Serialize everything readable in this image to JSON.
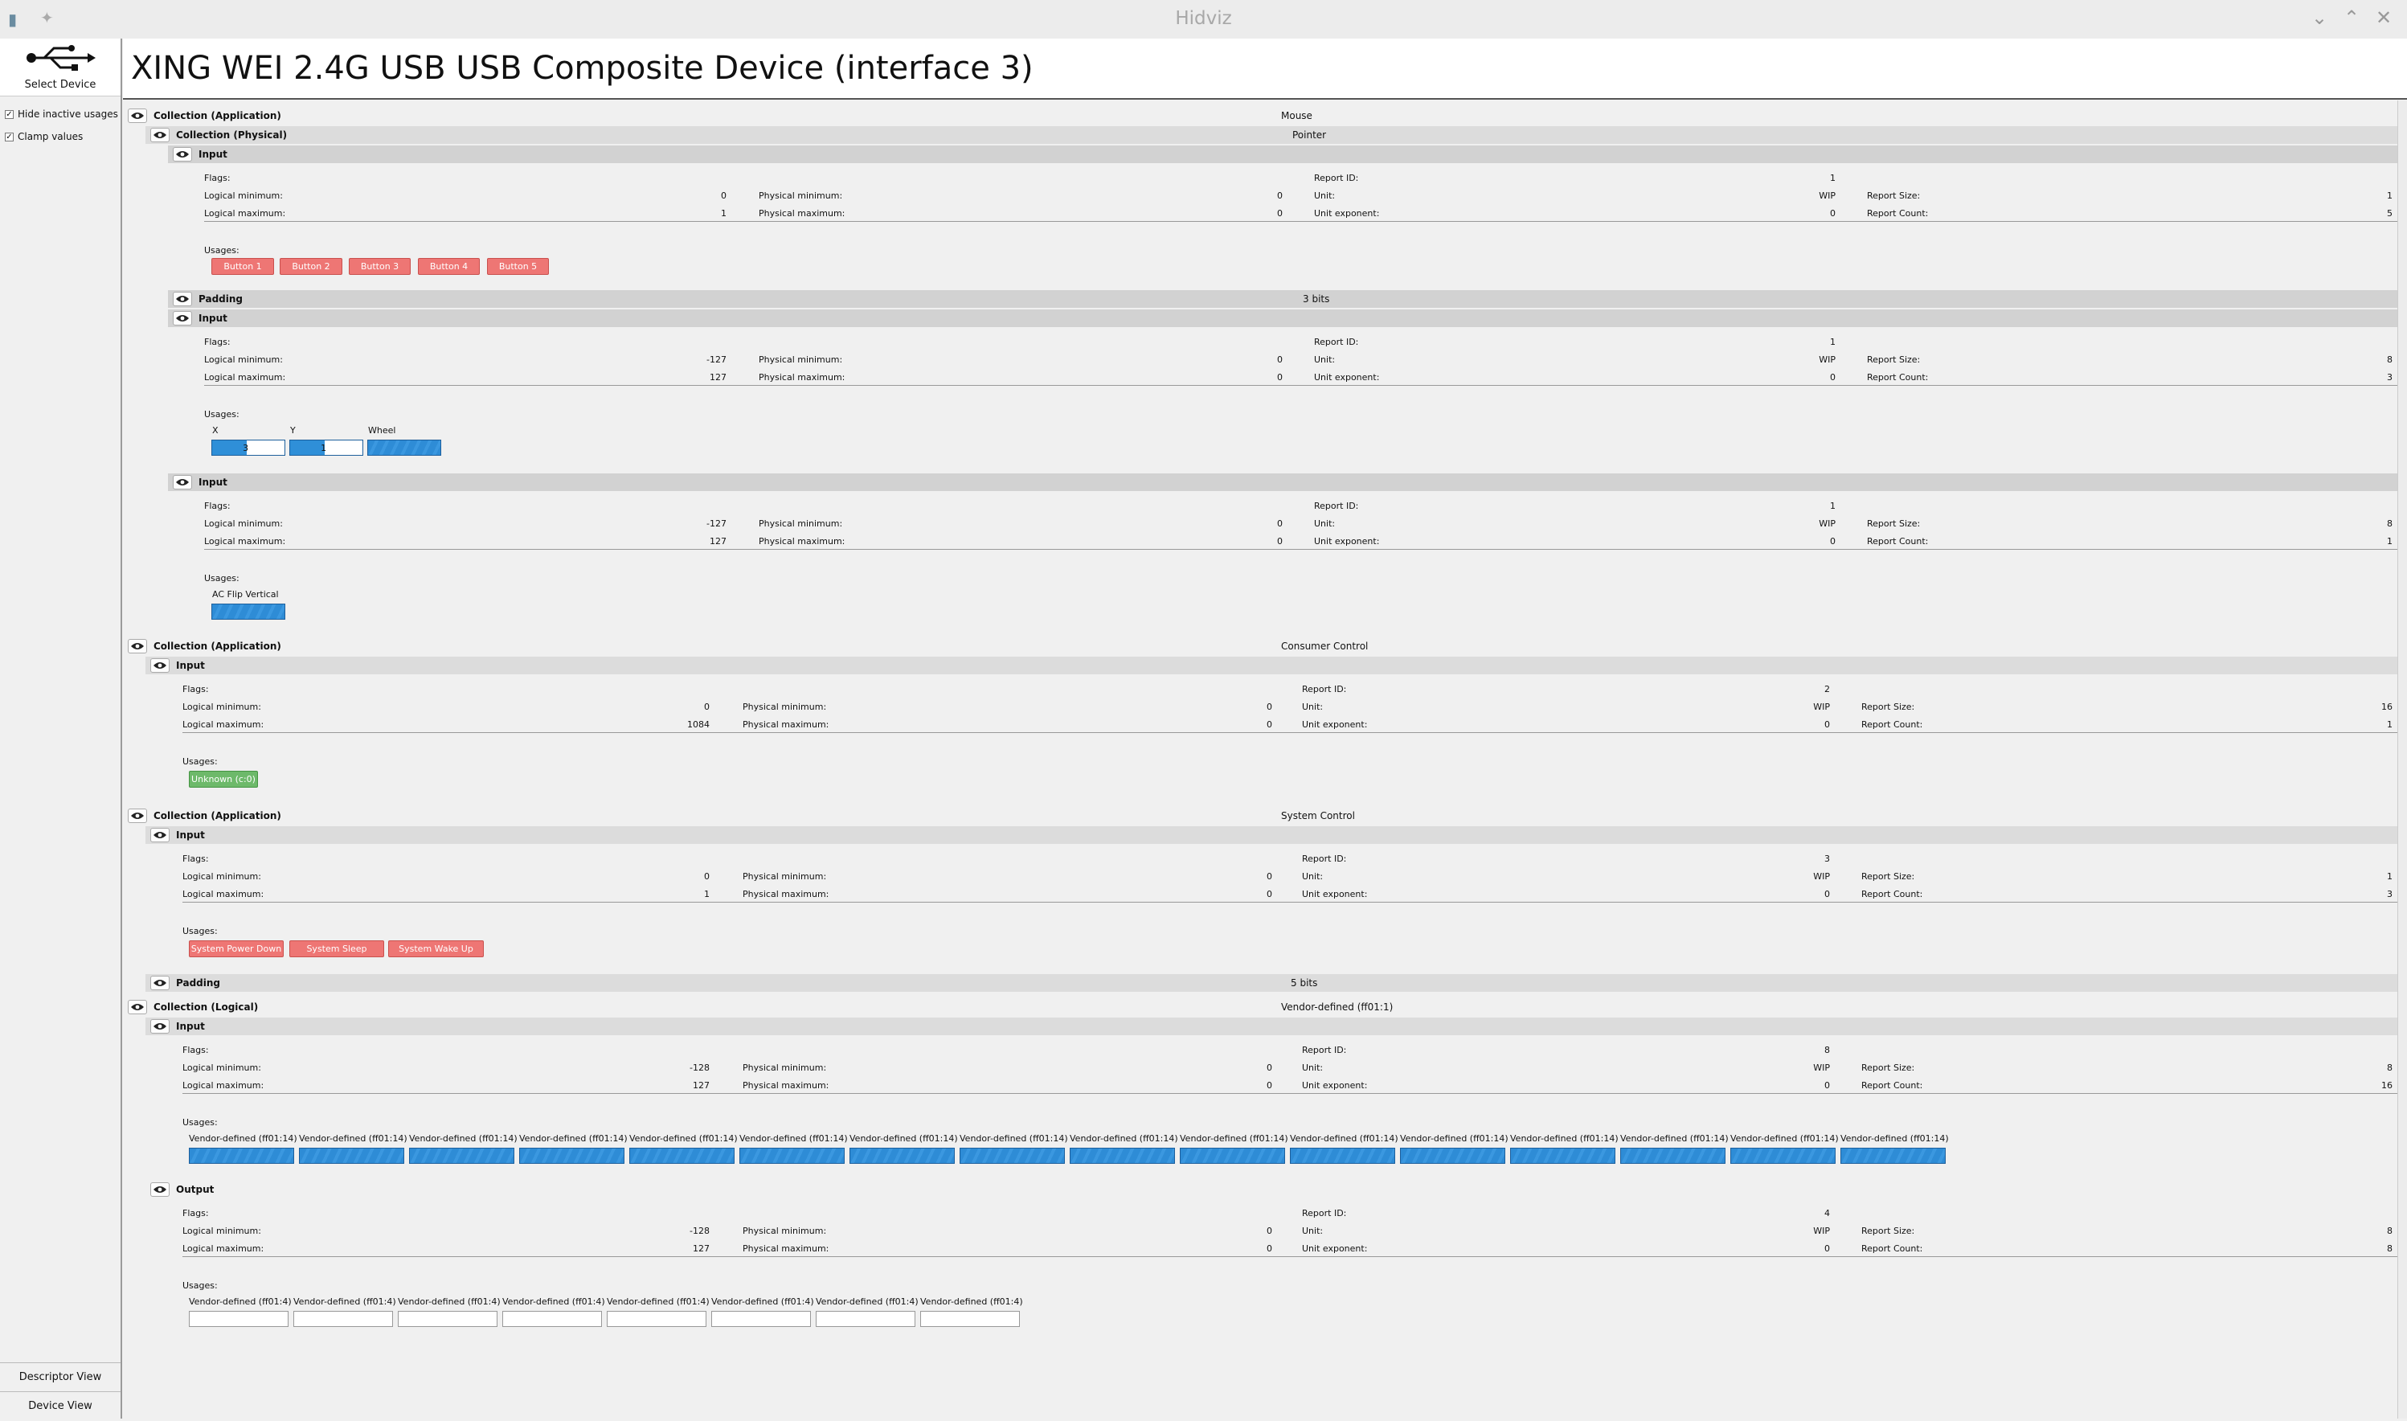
{
  "window": {
    "title": "Hidviz"
  },
  "sidebar": {
    "select_device": "Select Device",
    "hide_inactive": "Hide inactive usages",
    "clamp_values": "Clamp values",
    "descriptor_view": "Descriptor View",
    "device_view": "Device View"
  },
  "device": {
    "name": "XING WEI 2.4G USB USB Composite Device (interface 3)"
  },
  "labels": {
    "flags": "Flags:",
    "logical_min": "Logical minimum:",
    "logical_max": "Logical maximum:",
    "physical_min": "Physical minimum:",
    "physical_max": "Physical maximum:",
    "report_id": "Report ID:",
    "unit": "Unit:",
    "unit_exp": "Unit exponent:",
    "report_size": "Report Size:",
    "report_count": "Report Count:",
    "usages": "Usages:"
  },
  "collections": [
    {
      "type": "Collection (Application)",
      "usage": "Mouse"
    },
    {
      "type": "Collection (Physical)",
      "usage": "Pointer"
    },
    {
      "type": "Collection (Application)",
      "usage": "Consumer Control"
    },
    {
      "type": "Collection (Application)",
      "usage": "System Control"
    },
    {
      "type": "Collection (Logical)",
      "usage": "Vendor-defined (ff01:1)"
    }
  ],
  "items": [
    {
      "kind": "Input",
      "lmin": "0",
      "lmax": "1",
      "pmin": "0",
      "pmax": "0",
      "rid": "1",
      "unit": "WIP",
      "uexp": "0",
      "rsize": "1",
      "rcount": "5",
      "usages": [
        "Button 1",
        "Button 2",
        "Button 3",
        "Button 4",
        "Button 5"
      ]
    },
    {
      "kind": "Input",
      "lmin": "-127",
      "lmax": "127",
      "pmin": "0",
      "pmax": "0",
      "rid": "1",
      "unit": "WIP",
      "uexp": "0",
      "rsize": "8",
      "rcount": "3",
      "usages": [
        {
          "label": "X",
          "value": "3",
          "level": 0.48
        },
        {
          "label": "Y",
          "value": "1",
          "level": 0.48
        },
        {
          "label": "Wheel"
        }
      ]
    },
    {
      "kind": "Input",
      "lmin": "-127",
      "lmax": "127",
      "pmin": "0",
      "pmax": "0",
      "rid": "1",
      "unit": "WIP",
      "uexp": "0",
      "rsize": "8",
      "rcount": "1",
      "usages": [
        "AC Flip Vertical"
      ]
    },
    {
      "kind": "Input",
      "lmin": "0",
      "lmax": "1084",
      "pmin": "0",
      "pmax": "0",
      "rid": "2",
      "unit": "WIP",
      "uexp": "0",
      "rsize": "16",
      "rcount": "1",
      "usages": [
        "Unknown (c:0)"
      ]
    },
    {
      "kind": "Input",
      "lmin": "0",
      "lmax": "1",
      "pmin": "0",
      "pmax": "0",
      "rid": "3",
      "unit": "WIP",
      "uexp": "0",
      "rsize": "1",
      "rcount": "3",
      "usages": [
        "System Power Down",
        "System Sleep",
        "System Wake Up"
      ]
    },
    {
      "kind": "Input",
      "lmin": "-128",
      "lmax": "127",
      "pmin": "0",
      "pmax": "0",
      "rid": "8",
      "unit": "WIP",
      "uexp": "0",
      "rsize": "8",
      "rcount": "16",
      "usage_label": "Vendor-defined (ff01:14)"
    },
    {
      "kind": "Output",
      "lmin": "-128",
      "lmax": "127",
      "pmin": "0",
      "pmax": "0",
      "rid": "4",
      "unit": "WIP",
      "uexp": "0",
      "rsize": "8",
      "rcount": "8",
      "usage_label": "Vendor-defined (ff01:4)"
    }
  ],
  "paddings": [
    {
      "name": "Padding",
      "value": "3 bits"
    },
    {
      "name": "Padding",
      "value": "5 bits"
    }
  ]
}
